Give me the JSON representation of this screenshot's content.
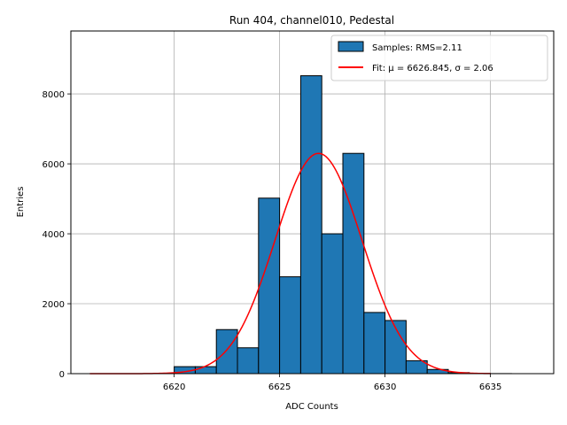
{
  "chart_data": {
    "type": "bar",
    "title": "Run 404, channel010, Pedestal",
    "xlabel": "ADC Counts",
    "ylabel": "Entries",
    "xlim": [
      6615.1,
      6638.0
    ],
    "ylim": [
      0,
      9800
    ],
    "grid": true,
    "legend_placement": "top-right",
    "x_ticks": [
      6620,
      6625,
      6630,
      6635
    ],
    "y_ticks": [
      0,
      2000,
      4000,
      6000,
      8000
    ],
    "histogram": {
      "name": "Samples: RMS=2.11",
      "color": "#1f77b4",
      "edge_color": "#000000",
      "bin_edges": [
        6620,
        6621,
        6622,
        6623,
        6624,
        6625,
        6626,
        6627,
        6628,
        6629,
        6630,
        6631,
        6632,
        6633,
        6634,
        6635,
        6636,
        6637
      ],
      "counts": [
        200,
        200,
        1260,
        740,
        5020,
        2770,
        8520,
        4000,
        6300,
        1750,
        1520,
        370,
        120,
        30,
        5,
        2,
        0
      ]
    },
    "fit": {
      "name": "Fit: μ = 6626.845, σ = 2.06",
      "color": "#ff0000",
      "mu": 6626.845,
      "sigma": 2.06,
      "amplitude": 6300,
      "x_range": [
        6616,
        6635
      ]
    }
  }
}
